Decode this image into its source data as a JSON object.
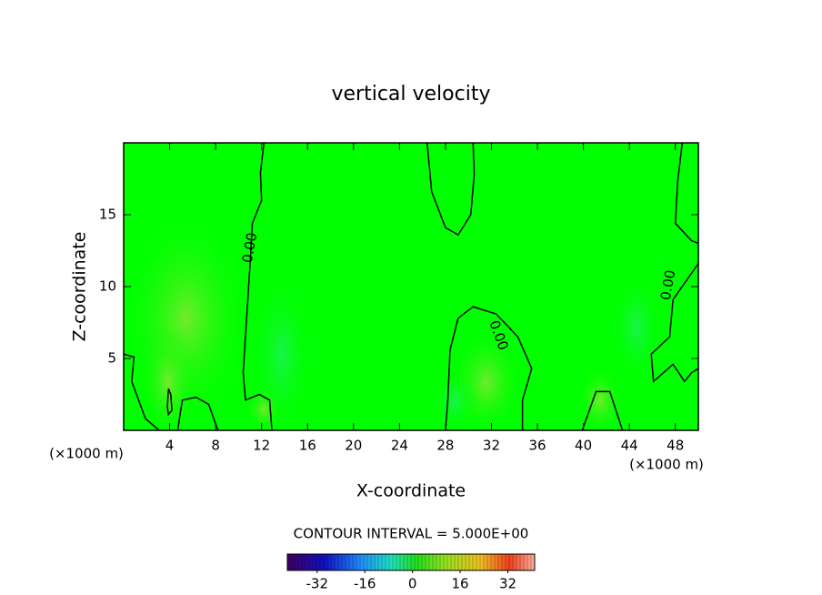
{
  "chart_data": {
    "type": "contour",
    "title": "vertical velocity",
    "x_label": "X-coordinate",
    "y_label": "Z-coordinate",
    "x_unit": "(×1000 m)",
    "y_unit": "(×1000 m)",
    "xlim": [
      0,
      50
    ],
    "ylim": [
      0,
      20
    ],
    "xticks": [
      4,
      8,
      12,
      16,
      20,
      24,
      28,
      32,
      36,
      40,
      44,
      48
    ],
    "yticks": [
      5,
      10,
      15
    ],
    "fill_color": "#00ff00",
    "line_color": "#000000",
    "contours": [
      {
        "x": [
          12.2,
          11.9,
          12.0,
          11.2,
          11.0,
          10.8,
          10.6,
          10.4,
          10.6,
          11.8,
          12.7,
          12.9
        ],
        "y": [
          20,
          17.9,
          16.0,
          14.4,
          11.6,
          9.1,
          6.6,
          4.0,
          2.1,
          2.5,
          2.1,
          0
        ]
      },
      {
        "x": [
          26.4,
          26.8,
          28.0,
          29.1,
          30.2,
          30.5,
          30.4
        ],
        "y": [
          20,
          16.6,
          14.1,
          13.6,
          15.0,
          17.8,
          20
        ]
      },
      {
        "x": [
          28.0,
          28.2,
          28.4,
          29.1,
          30.4,
          32.4,
          34.3,
          35.5,
          34.7,
          34.7
        ],
        "y": [
          0,
          2.1,
          5.6,
          7.8,
          8.6,
          8.1,
          6.5,
          4.3,
          2.1,
          0
        ]
      },
      {
        "x": [
          48.6,
          48.2,
          48.0,
          49.4,
          50
        ],
        "y": [
          20,
          17.3,
          14.4,
          13.2,
          13.0
        ]
      },
      {
        "x": [
          50,
          47.8,
          47.5,
          45.9,
          46.1,
          47.8,
          48.8,
          49.4,
          50
        ],
        "y": [
          11.6,
          9.1,
          6.5,
          5.3,
          3.4,
          4.6,
          3.4,
          4.0,
          4.3
        ]
      },
      {
        "x": [
          0,
          0.9,
          0.7,
          1.9,
          3.1
        ],
        "y": [
          5.3,
          5.1,
          3.4,
          0.8,
          0
        ]
      },
      {
        "x": [
          4.7,
          5.1,
          6.3,
          7.4,
          8.2
        ],
        "y": [
          0,
          2.1,
          2.3,
          1.8,
          0
        ]
      },
      {
        "x": [
          39.9,
          41.1,
          42.3,
          43.4
        ],
        "y": [
          0,
          2.7,
          2.7,
          0
        ]
      },
      {
        "x": [
          3.9,
          4.1,
          4.2,
          3.9,
          3.8,
          3.9
        ],
        "y": [
          2.9,
          2.5,
          1.4,
          1.1,
          1.6,
          2.9
        ]
      }
    ],
    "contour_labels": [
      {
        "text": "0.00",
        "x": 11.0,
        "y": 12.7
      },
      {
        "text": "0.00",
        "x": 32.6,
        "y": 6.6
      },
      {
        "text": "0.00",
        "x": 47.4,
        "y": 10.1
      }
    ],
    "contour_interval_text": "CONTOUR INTERVAL = 5.000E+00",
    "colorbar": {
      "lim": [
        -42,
        41
      ],
      "ticks": [
        -32,
        -16,
        0,
        16,
        32
      ]
    }
  }
}
